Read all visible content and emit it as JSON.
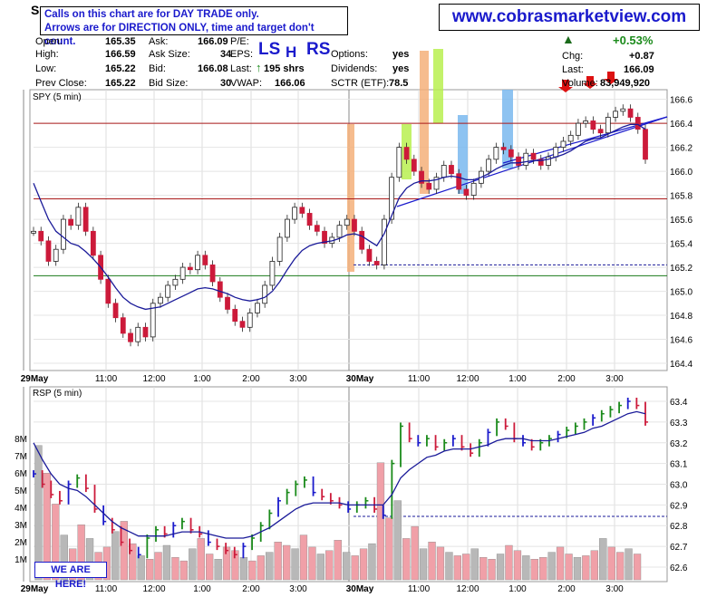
{
  "notice": {
    "line1": "Calls on this chart are for DAY TRADE only.",
    "line2": "Arrows are for DIRECTION ONLY, time and target don't count."
  },
  "site": "www.cobrasmarketview.com",
  "ticker_letter": "S",
  "quote": {
    "open_label": "Open:",
    "open": "165.35",
    "high_label": "High:",
    "high": "166.59",
    "low_label": "Low:",
    "low": "165.22",
    "prev_label": "Prev Close:",
    "prev": "165.22",
    "ask_label": "Ask:",
    "ask": "166.09",
    "asksize_label": "Ask Size:",
    "asksize": "34",
    "bid_label": "Bid:",
    "bid": "166.08",
    "bidsize_label": "Bid Size:",
    "bidsize": "30",
    "pe_label": "P/E:",
    "eps_label": "EPS:",
    "last_label": "Last:",
    "last_trade": "195 shrs",
    "vwap_label": "VWAP:",
    "vwap": "166.06",
    "options_label": "Options:",
    "options": "yes",
    "dividends_label": "Dividends:",
    "dividends": "yes",
    "sctr_label": "SCTR (ETF):",
    "sctr": "78.5",
    "chg_pct": "+0.53%",
    "chg_label": "Chg:",
    "chg": "+0.87",
    "lastprice_label": "Last:",
    "lastprice": "166.09",
    "volume_label": "Volume:",
    "volume": "83,949,920"
  },
  "signals": {
    "ls": "LS",
    "h": "H",
    "rs": "RS"
  },
  "here_label": "WE ARE HERE!",
  "colors": {
    "up": "#1a8a1a",
    "down": "#cc1a3a",
    "ma": "#1a1a99",
    "trend": "#1a1acc",
    "orange": "#f5b07a",
    "green": "#b8f050",
    "blue": "#7ab8ee",
    "volume": "#f0a0a8"
  },
  "chart_data": [
    {
      "type": "line",
      "title": "SPY (5 min)",
      "x_ticks": [
        "29May",
        "11:00",
        "12:00",
        "1:00",
        "2:00",
        "3:00",
        "30May",
        "11:00",
        "12:00",
        "1:00",
        "2:00",
        "3:00"
      ],
      "y_ticks": [
        166.6,
        166.4,
        166.2,
        166.0,
        165.8,
        165.6,
        165.4,
        165.2,
        165.0,
        164.8,
        164.6,
        164.4
      ],
      "ylim": [
        164.34,
        166.68
      ],
      "series": [
        {
          "values": [
            165.5,
            165.42,
            165.25,
            165.35,
            165.6,
            165.55,
            165.7,
            165.5,
            165.3,
            165.1,
            164.9,
            164.78,
            164.65,
            164.58,
            164.7,
            164.62,
            164.9,
            164.95,
            165.05,
            165.1,
            165.2,
            165.18,
            165.3,
            165.22,
            165.08,
            164.95,
            164.85,
            164.75,
            164.7,
            164.82,
            164.9,
            165.05,
            165.25,
            165.45,
            165.6,
            165.7,
            165.65,
            165.55,
            165.5,
            165.4,
            165.45,
            165.55,
            165.6,
            165.5,
            165.35,
            165.25,
            165.22,
            165.6,
            165.95,
            166.2,
            166.1,
            166.0,
            165.9,
            165.85,
            165.95,
            166.05,
            165.98,
            165.85,
            165.8,
            165.9,
            166.0,
            166.1,
            166.2,
            166.18,
            166.12,
            166.05,
            166.15,
            166.1,
            166.05,
            166.12,
            166.2,
            166.25,
            166.3,
            166.4,
            166.42,
            166.35,
            166.32,
            166.45,
            166.5,
            166.52,
            166.45,
            166.35,
            166.1
          ]
        },
        {
          "values": [
            165.9,
            165.75,
            165.6,
            165.5,
            165.45,
            165.4,
            165.38,
            165.33,
            165.27,
            165.2,
            165.12,
            165.03,
            164.95,
            164.9,
            164.87,
            164.85,
            164.86,
            164.87,
            164.9,
            164.93,
            164.96,
            164.99,
            165.02,
            165.03,
            165.02,
            165.0,
            164.98,
            164.95,
            164.93,
            164.92,
            164.93,
            164.95,
            165.0,
            165.08,
            165.18,
            165.27,
            165.34,
            165.38,
            165.4,
            165.41,
            165.42,
            165.44,
            165.47,
            165.48,
            165.46,
            165.42,
            165.38,
            165.48,
            165.63,
            165.78,
            165.86,
            165.9,
            165.92,
            165.92,
            165.93,
            165.95,
            165.96,
            165.95,
            165.93,
            165.93,
            165.95,
            165.98,
            166.02,
            166.05,
            166.07,
            166.07,
            166.08,
            166.09,
            166.09,
            166.1,
            166.12,
            166.14,
            166.17,
            166.21,
            166.25,
            166.27,
            166.28,
            166.31,
            166.34,
            166.37,
            166.39,
            166.39,
            166.35
          ]
        }
      ],
      "levels": [
        166.4,
        165.77,
        165.13,
        165.22
      ]
    },
    {
      "type": "line",
      "title": "RSP (5 min)",
      "y_ticks": [
        63.4,
        63.3,
        63.2,
        63.1,
        63.0,
        62.9,
        62.8,
        62.7,
        62.6
      ],
      "volume_ticks": [
        "8M",
        "7M",
        "6M",
        "5M",
        "4M",
        "3M",
        "2M",
        "1M"
      ],
      "ylim": [
        62.53,
        63.47
      ],
      "series": [
        {
          "values": [
            63.05,
            63.0,
            62.95,
            62.92,
            63.0,
            63.03,
            62.98,
            62.88,
            62.82,
            62.78,
            62.72,
            62.68,
            62.66,
            62.74,
            62.78,
            62.76,
            62.8,
            62.82,
            62.78,
            62.76,
            62.72,
            62.7,
            62.68,
            62.66,
            62.7,
            62.74,
            62.8,
            62.86,
            62.92,
            62.96,
            63.0,
            63.02,
            62.96,
            62.94,
            62.92,
            62.9,
            62.88,
            62.9,
            62.92,
            62.88,
            62.85,
            63.1,
            63.28,
            63.22,
            63.2,
            63.22,
            63.18,
            63.2,
            63.22,
            63.18,
            63.15,
            63.2,
            63.25,
            63.3,
            63.28,
            63.22,
            63.2,
            63.18,
            63.2,
            63.22,
            63.24,
            63.26,
            63.28,
            63.3,
            63.32,
            63.34,
            63.36,
            63.38,
            63.4,
            63.38,
            63.3
          ]
        },
        {
          "values": [
            63.2,
            63.12,
            63.05,
            63.0,
            62.98,
            62.97,
            62.94,
            62.9,
            62.86,
            62.82,
            62.79,
            62.77,
            62.75,
            62.75,
            62.75,
            62.75,
            62.76,
            62.77,
            62.77,
            62.77,
            62.76,
            62.75,
            62.74,
            62.74,
            62.74,
            62.75,
            62.77,
            62.79,
            62.82,
            62.85,
            62.88,
            62.9,
            62.91,
            62.91,
            62.91,
            62.91,
            62.9,
            62.9,
            62.9,
            62.9,
            62.9,
            62.95,
            63.03,
            63.07,
            63.1,
            63.13,
            63.14,
            63.16,
            63.17,
            63.17,
            63.17,
            63.18,
            63.19,
            63.21,
            63.22,
            63.22,
            63.22,
            63.21,
            63.21,
            63.21,
            63.22,
            63.23,
            63.24,
            63.25,
            63.27,
            63.28,
            63.3,
            63.32,
            63.34,
            63.35,
            63.34
          ]
        }
      ],
      "volume_millions": [
        7.8,
        6.2,
        4.4,
        2.6,
        1.8,
        3.2,
        2.4,
        1.6,
        1.9,
        2.8,
        3.4,
        2.1,
        1.4,
        1.2,
        1.6,
        2.0,
        1.3,
        1.1,
        1.8,
        2.4,
        1.5,
        1.2,
        1.9,
        1.7,
        1.3,
        1.1,
        1.4,
        1.6,
        2.2,
        2.0,
        1.8,
        2.6,
        1.9,
        1.5,
        1.7,
        2.3,
        1.6,
        1.4,
        1.8,
        2.1,
        6.8,
        3.6,
        4.6,
        2.4,
        3.1,
        1.8,
        2.2,
        1.9,
        1.6,
        1.4,
        1.5,
        1.8,
        1.3,
        1.2,
        1.5,
        2.0,
        1.7,
        1.4,
        1.2,
        1.3,
        1.6,
        1.9,
        1.5,
        1.3,
        1.4,
        1.7,
        2.4,
        1.9,
        1.6,
        1.8,
        1.5
      ],
      "levels": [
        62.845
      ]
    }
  ]
}
